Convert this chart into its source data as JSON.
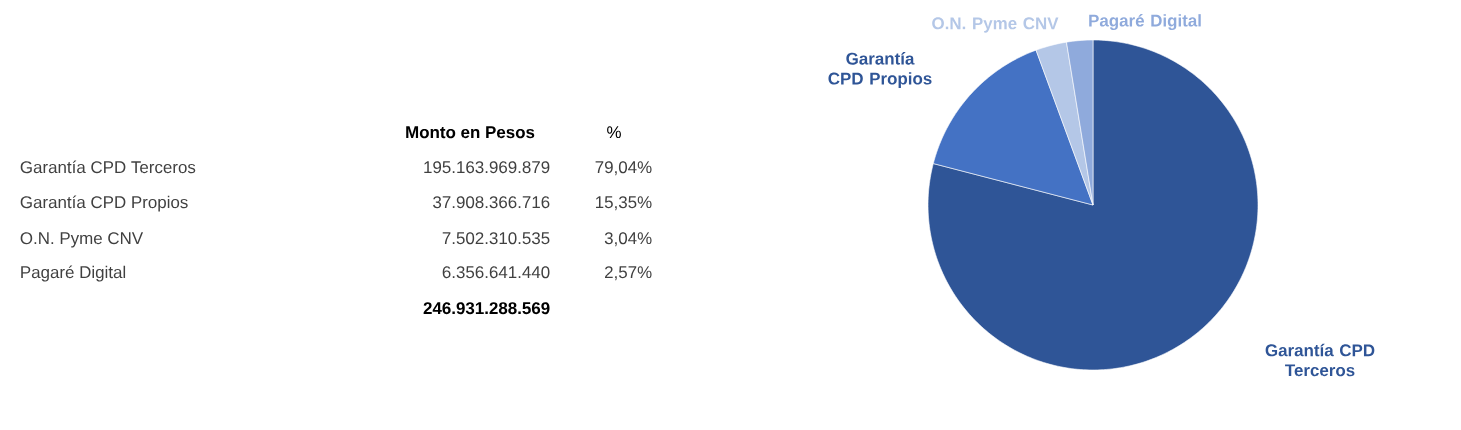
{
  "chart_data": {
    "type": "pie",
    "categories": [
      "Garantía CPD Terceros",
      "Garantía CPD Propios",
      "O.N. Pyme CNV",
      "Pagaré Digital"
    ],
    "values": [
      79.04,
      15.35,
      3.04,
      2.57
    ],
    "colors": [
      "#2f5597",
      "#4472c4",
      "#b4c7e7",
      "#8faadc"
    ],
    "annotations": [
      "Monto en Pesos",
      "%",
      "195.163.969.879",
      "37.908.366.716",
      "7.502.310.535",
      "6.356.641.440",
      "79,04%",
      "15,35%",
      "3,04%",
      "2,57%",
      "246.931.288.569"
    ]
  }
}
